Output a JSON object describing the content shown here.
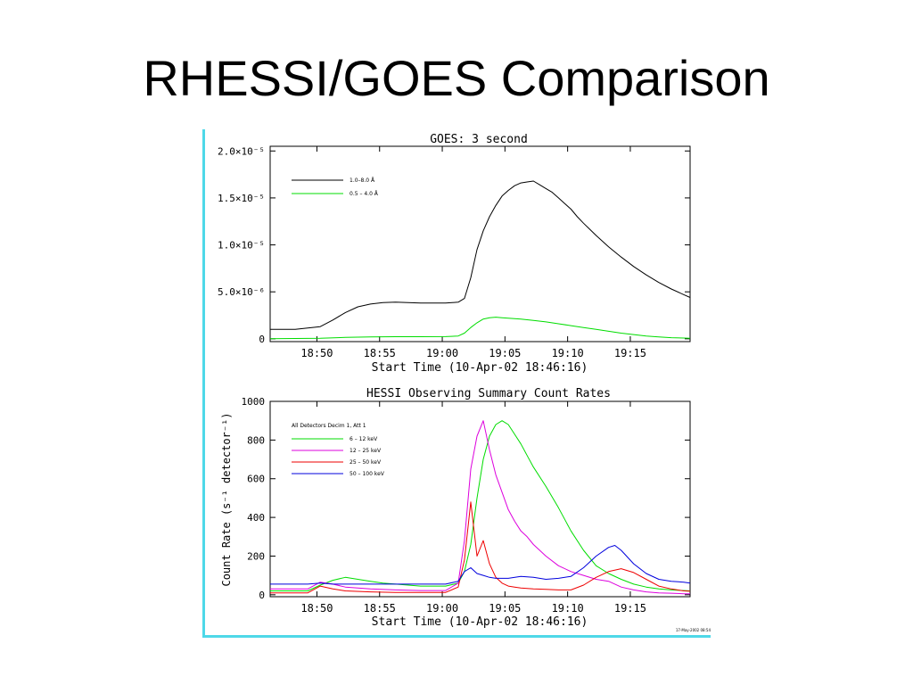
{
  "slide": {
    "title": "RHESSI/GOES Comparison"
  },
  "colors": {
    "frame": "#4ed8e8"
  },
  "chart_data": [
    {
      "type": "line",
      "title": "GOES: 3 second",
      "xlabel": "Start Time (10-Apr-02 18:46:16)",
      "ylabel": "",
      "x_tick_labels": [
        "18:50",
        "18:55",
        "19:00",
        "19:05",
        "19:10",
        "19:15"
      ],
      "x_tick_minutes": [
        3.73,
        8.73,
        13.73,
        18.73,
        23.73,
        28.73
      ],
      "xlim_minutes": [
        0,
        33.5
      ],
      "y_tick_labels": [
        "0",
        "5.0×10⁻⁶",
        "1.0×10⁻⁵",
        "1.5×10⁻⁵",
        "2.0×10⁻⁵"
      ],
      "y_tick_values": [
        0,
        5e-06,
        1e-05,
        1.5e-05,
        2e-05
      ],
      "ylim": [
        -3e-07,
        2.05e-05
      ],
      "legend_position": "top-left",
      "series": [
        {
          "name": "1.0–8.0 Å",
          "color": "#000000",
          "x": [
            0,
            2,
            4,
            5,
            6,
            7,
            8,
            9,
            10,
            11,
            12,
            13,
            14,
            15,
            15.5,
            16,
            16.5,
            17,
            17.5,
            18,
            18.5,
            19,
            19.5,
            20,
            20.5,
            21,
            21.5,
            22,
            22.5,
            23,
            23.5,
            24,
            24.5,
            25,
            26,
            27,
            28,
            29,
            30,
            31,
            32,
            33,
            33.5
          ],
          "y": [
            1e-06,
            1e-06,
            1.3e-06,
            2e-06,
            2.8e-06,
            3.4e-06,
            3.7e-06,
            3.85e-06,
            3.9e-06,
            3.85e-06,
            3.8e-06,
            3.8e-06,
            3.8e-06,
            3.9e-06,
            4.3e-06,
            6.5e-06,
            9.5e-06,
            1.15e-05,
            1.3e-05,
            1.42e-05,
            1.52e-05,
            1.58e-05,
            1.63e-05,
            1.66e-05,
            1.67e-05,
            1.68e-05,
            1.64e-05,
            1.6e-05,
            1.56e-05,
            1.5e-05,
            1.44e-05,
            1.38e-05,
            1.3e-05,
            1.23e-05,
            1.1e-05,
            9.8e-06,
            8.7e-06,
            7.7e-06,
            6.8e-06,
            6e-06,
            5.3e-06,
            4.7e-06,
            4.4e-06
          ]
        },
        {
          "name": "0.5 – 4.0 Å",
          "color": "#00dd00",
          "x": [
            0,
            4,
            6,
            8,
            10,
            12,
            14,
            15,
            15.5,
            16,
            16.5,
            17,
            17.5,
            18,
            18.5,
            19,
            20,
            21,
            22,
            23,
            24,
            25,
            26,
            27,
            28,
            29,
            30,
            31,
            32,
            33,
            33.5
          ],
          "y": [
            0.0,
            5e-08,
            1.5e-07,
            2e-07,
            2.2e-07,
            2.2e-07,
            2.3e-07,
            3e-07,
            6e-07,
            1.2e-06,
            1.7e-06,
            2.1e-06,
            2.25e-06,
            2.3e-06,
            2.25e-06,
            2.2e-06,
            2.1e-06,
            1.95e-06,
            1.8e-06,
            1.6e-06,
            1.4e-06,
            1.2e-06,
            1e-06,
            8e-07,
            6e-07,
            4.5e-07,
            3e-07,
            2e-07,
            1.2e-07,
            8e-08,
            5e-08
          ]
        }
      ]
    },
    {
      "type": "line",
      "title": "HESSI Observing Summary Count Rates",
      "xlabel": "Start Time (10-Apr-02 18:46:16)",
      "ylabel": "Count Rate (s⁻¹ detector⁻¹)",
      "x_tick_labels": [
        "18:50",
        "18:55",
        "19:00",
        "19:05",
        "19:10",
        "19:15"
      ],
      "x_tick_minutes": [
        3.73,
        8.73,
        13.73,
        18.73,
        23.73,
        28.73
      ],
      "xlim_minutes": [
        0,
        33.5
      ],
      "y_tick_labels": [
        "0",
        "200",
        "400",
        "600",
        "800",
        "1000"
      ],
      "y_tick_values": [
        0,
        200,
        400,
        600,
        800,
        1000
      ],
      "ylim": [
        -10,
        1000
      ],
      "legend_position": "top-left",
      "legend_header": "All Detectors  Decim 1, Att 1",
      "stamp": "17-May-2002 08:54",
      "series": [
        {
          "name": "6 – 12 keV",
          "color": "#00dd00",
          "x": [
            0,
            3,
            4,
            5,
            6,
            7,
            8,
            9,
            10,
            11,
            12,
            13,
            14,
            15,
            15.5,
            16,
            16.5,
            17,
            17.5,
            18,
            18.5,
            19,
            19.5,
            20,
            20.5,
            21,
            22,
            23,
            24,
            25,
            26,
            27,
            28,
            29,
            30,
            31,
            32,
            33,
            33.5
          ],
          "y": [
            20,
            20,
            50,
            75,
            90,
            80,
            70,
            60,
            55,
            50,
            45,
            45,
            45,
            60,
            120,
            260,
            500,
            700,
            820,
            880,
            900,
            880,
            830,
            780,
            720,
            660,
            560,
            450,
            330,
            230,
            150,
            110,
            80,
            55,
            40,
            30,
            25,
            22,
            20
          ]
        },
        {
          "name": "12 – 25 keV",
          "color": "#dd00dd",
          "x": [
            0,
            3,
            4,
            5,
            6,
            8,
            10,
            12,
            14,
            15,
            15.5,
            16,
            16.5,
            17,
            17.5,
            18,
            18.5,
            19,
            19.5,
            20,
            20.5,
            21,
            22,
            23,
            24,
            25,
            26,
            27,
            28,
            29,
            30,
            31,
            32,
            33,
            33.5
          ],
          "y": [
            30,
            30,
            65,
            55,
            40,
            30,
            25,
            22,
            22,
            60,
            280,
            650,
            820,
            900,
            750,
            620,
            530,
            440,
            380,
            330,
            300,
            260,
            200,
            150,
            120,
            100,
            80,
            70,
            40,
            25,
            15,
            10,
            8,
            5,
            5
          ]
        },
        {
          "name": "25 – 50 keV",
          "color": "#ee0000",
          "x": [
            0,
            3,
            4,
            5,
            6,
            8,
            10,
            12,
            14,
            15,
            15.5,
            16,
            16.5,
            17,
            17.5,
            18,
            18.5,
            19,
            19.5,
            20,
            21,
            22,
            23,
            24,
            25,
            26,
            27,
            28,
            29,
            30,
            31,
            32,
            33,
            33.5
          ],
          "y": [
            10,
            10,
            45,
            30,
            20,
            15,
            12,
            12,
            12,
            40,
            180,
            480,
            200,
            280,
            160,
            90,
            60,
            45,
            40,
            35,
            30,
            28,
            25,
            25,
            50,
            90,
            120,
            135,
            115,
            80,
            45,
            30,
            20,
            18
          ]
        },
        {
          "name": "50 – 100 keV",
          "color": "#0000dd",
          "x": [
            0,
            3,
            4,
            5,
            6,
            8,
            10,
            12,
            14,
            15,
            15.5,
            16,
            16.5,
            17,
            17.5,
            18,
            19,
            20,
            21,
            22,
            23,
            24,
            25,
            26,
            27,
            27.5,
            28,
            29,
            30,
            31,
            32,
            33,
            33.5
          ],
          "y": [
            55,
            55,
            60,
            55,
            55,
            55,
            55,
            55,
            55,
            70,
            120,
            140,
            110,
            100,
            90,
            85,
            85,
            95,
            90,
            80,
            85,
            95,
            140,
            200,
            245,
            255,
            230,
            160,
            110,
            80,
            70,
            65,
            60
          ]
        }
      ]
    }
  ]
}
